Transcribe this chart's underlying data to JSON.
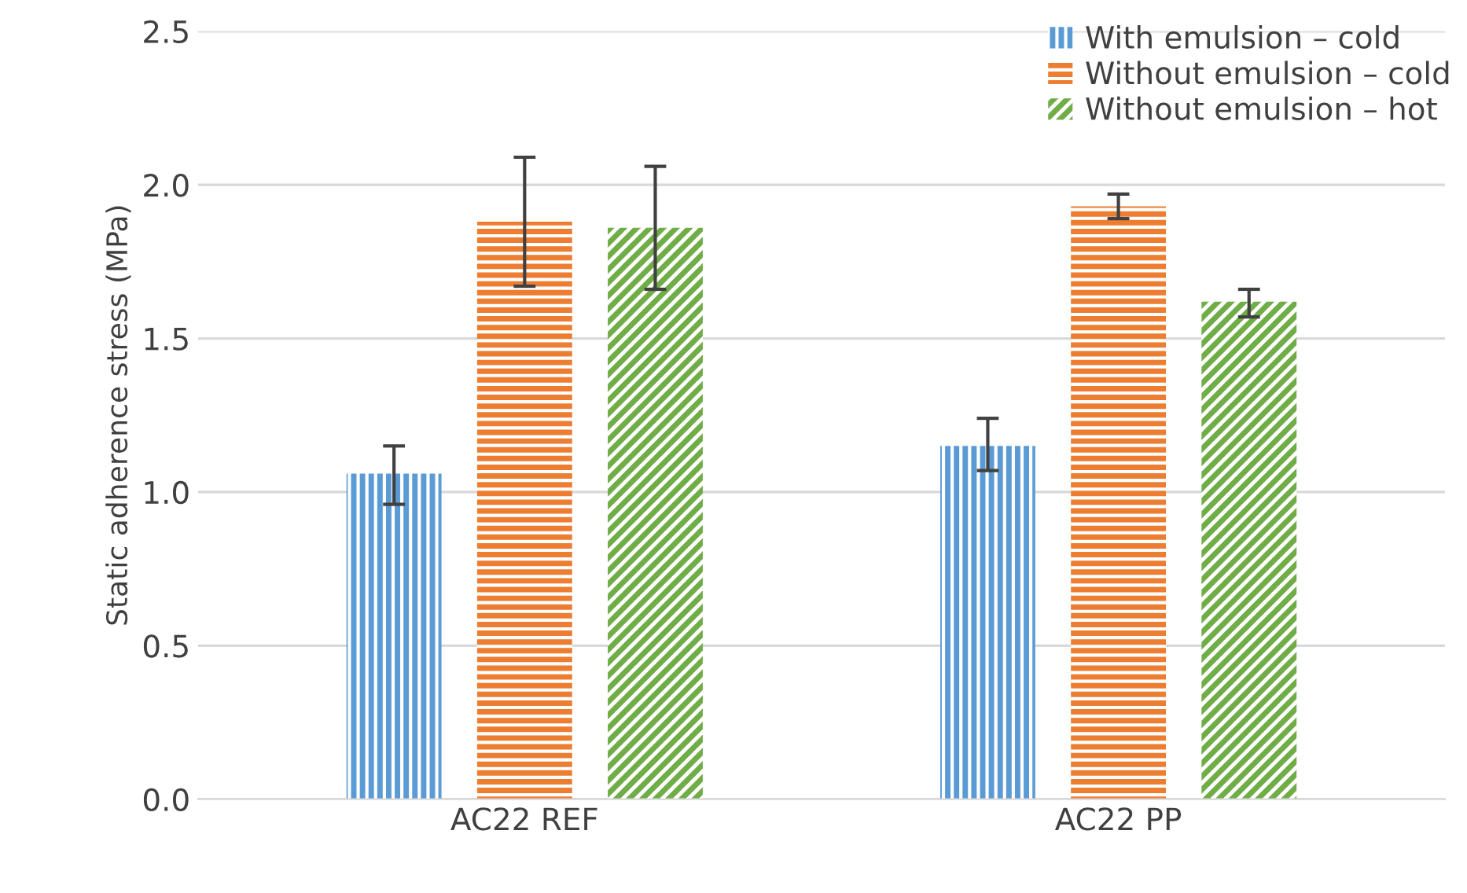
{
  "chart_data": {
    "type": "bar",
    "ylabel": "Static adherence stress (MPa)",
    "categories": [
      "AC22 REF",
      "AC22 PP"
    ],
    "series": [
      {
        "name": "With emulsion – cold",
        "color": "#5b9bd5",
        "values": [
          1.06,
          1.15
        ],
        "errors": [
          [
            0.96,
            1.15
          ],
          [
            1.07,
            1.24
          ]
        ]
      },
      {
        "name": "Without emulsion – cold",
        "color": "#ed7d31",
        "values": [
          1.88,
          1.93
        ],
        "errors": [
          [
            1.67,
            2.09
          ],
          [
            1.89,
            1.97
          ]
        ]
      },
      {
        "name": "Without emulsion – hot",
        "color": "#70ad47",
        "values": [
          1.86,
          1.62
        ],
        "errors": [
          [
            1.66,
            2.06
          ],
          [
            1.57,
            1.66
          ]
        ]
      }
    ],
    "ylim": [
      0,
      2.5
    ],
    "yticks": [
      {
        "value": 0,
        "label": "0.0"
      },
      0.5,
      {
        "value": 1,
        "label": "1.0"
      },
      1.5,
      {
        "value": 2,
        "label": "2.0"
      },
      2.5
    ],
    "grid": "y",
    "legend": "top right"
  }
}
